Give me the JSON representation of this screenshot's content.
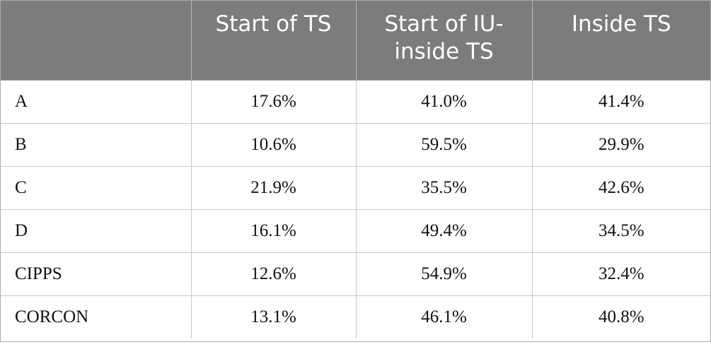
{
  "table": {
    "headers": [
      "",
      "Start of TS",
      "Start of IU-\ninside TS",
      "Inside TS"
    ],
    "rows": [
      {
        "label": "A",
        "cells": [
          "17.6%",
          "41.0%",
          "41.4%"
        ]
      },
      {
        "label": "B",
        "cells": [
          "10.6%",
          "59.5%",
          "29.9%"
        ]
      },
      {
        "label": "C",
        "cells": [
          "21.9%",
          "35.5%",
          "42.6%"
        ]
      },
      {
        "label": "D",
        "cells": [
          "16.1%",
          "49.4%",
          "34.5%"
        ]
      },
      {
        "label": "CIPPS",
        "cells": [
          "12.6%",
          "54.9%",
          "32.4%"
        ]
      },
      {
        "label": "CORCON",
        "cells": [
          "13.1%",
          "46.1%",
          "40.8%"
        ]
      }
    ]
  },
  "colors": {
    "header_background": "#7a7d7b",
    "header_text": "#ffffff",
    "grid_lines": "#c9c9c9"
  }
}
